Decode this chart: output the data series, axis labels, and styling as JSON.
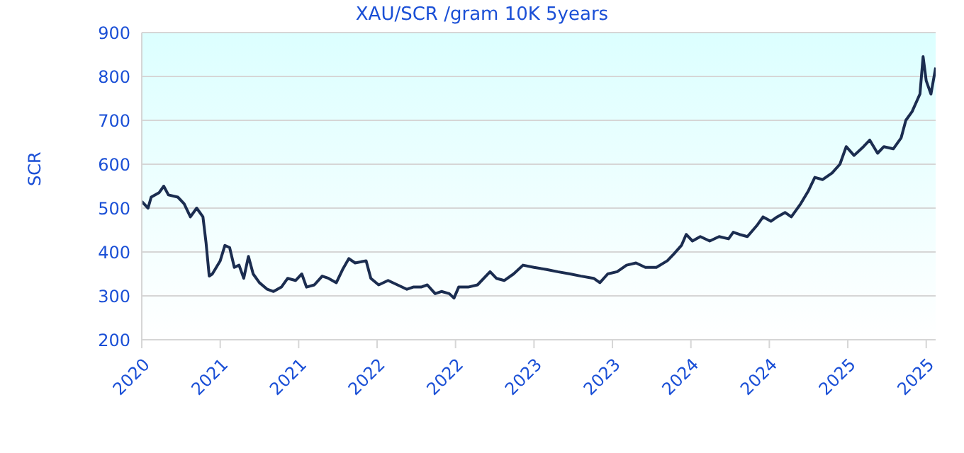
{
  "chart_data": {
    "type": "line",
    "title": "XAU/SCR /gram 10K 5years",
    "ylabel": "SCR",
    "x": [
      2020.25,
      2020.29,
      2020.31,
      2020.36,
      2020.39,
      2020.42,
      2020.48,
      2020.52,
      2020.56,
      2020.6,
      2020.64,
      2020.66,
      2020.68,
      2020.7,
      2020.75,
      2020.78,
      2020.81,
      2020.84,
      2020.87,
      2020.9,
      2020.93,
      2020.96,
      2021.0,
      2021.05,
      2021.09,
      2021.14,
      2021.18,
      2021.23,
      2021.27,
      2021.3,
      2021.35,
      2021.4,
      2021.44,
      2021.49,
      2021.53,
      2021.57,
      2021.61,
      2021.68,
      2021.71,
      2021.76,
      2021.82,
      2021.88,
      2021.94,
      2021.98,
      2022.03,
      2022.07,
      2022.12,
      2022.16,
      2022.21,
      2022.24,
      2022.27,
      2022.33,
      2022.39,
      2022.47,
      2022.51,
      2022.56,
      2022.62,
      2022.68,
      2022.75,
      2022.83,
      2022.9,
      2022.98,
      2023.05,
      2023.13,
      2023.17,
      2023.22,
      2023.28,
      2023.34,
      2023.4,
      2023.46,
      2023.53,
      2023.6,
      2023.64,
      2023.69,
      2023.72,
      2023.76,
      2023.81,
      2023.87,
      2023.93,
      2023.99,
      2024.02,
      2024.06,
      2024.11,
      2024.17,
      2024.21,
      2024.26,
      2024.3,
      2024.35,
      2024.39,
      2024.45,
      2024.5,
      2024.54,
      2024.59,
      2024.65,
      2024.7,
      2024.74,
      2024.79,
      2024.85,
      2024.89,
      2024.94,
      2024.98,
      2025.04,
      2025.09,
      2025.12,
      2025.16,
      2025.21,
      2025.23,
      2025.25,
      2025.28,
      2025.31
    ],
    "series": [
      {
        "color": "#1b2d50",
        "values": [
          515,
          500,
          525,
          535,
          550,
          530,
          525,
          510,
          480,
          500,
          480,
          420,
          345,
          350,
          380,
          415,
          410,
          365,
          370,
          340,
          390,
          350,
          330,
          315,
          310,
          320,
          340,
          335,
          350,
          320,
          325,
          345,
          340,
          330,
          360,
          385,
          375,
          380,
          340,
          325,
          335,
          325,
          315,
          320,
          320,
          325,
          305,
          310,
          305,
          295,
          320,
          320,
          325,
          355,
          340,
          335,
          350,
          370,
          365,
          360,
          355,
          350,
          345,
          340,
          330,
          350,
          355,
          370,
          375,
          365,
          365,
          380,
          395,
          415,
          440,
          425,
          435,
          425,
          435,
          430,
          445,
          440,
          435,
          460,
          480,
          470,
          480,
          490,
          480,
          510,
          540,
          570,
          565,
          580,
          600,
          640,
          620,
          640,
          655,
          625,
          640,
          635,
          660,
          700,
          720,
          760,
          845,
          790,
          760,
          820
        ]
      }
    ],
    "xlim": [
      2020.25,
      2025.31
    ],
    "xticks": [
      {
        "value": 2020.25,
        "label": "2020"
      },
      {
        "value": 2020.75,
        "label": "2021"
      },
      {
        "value": 2021.25,
        "label": "2021"
      },
      {
        "value": 2021.75,
        "label": "2022"
      },
      {
        "value": 2022.25,
        "label": "2022"
      },
      {
        "value": 2022.75,
        "label": "2023"
      },
      {
        "value": 2023.25,
        "label": "2023"
      },
      {
        "value": 2023.75,
        "label": "2024"
      },
      {
        "value": 2024.25,
        "label": "2024"
      },
      {
        "value": 2024.75,
        "label": "2025"
      },
      {
        "value": 2025.25,
        "label": "2025"
      }
    ],
    "ylim": [
      200,
      900
    ],
    "yticks": [
      200,
      300,
      400,
      500,
      600,
      700,
      800,
      900
    ],
    "grid": "y",
    "legend": false,
    "marker": "none",
    "line_style": "solid"
  }
}
